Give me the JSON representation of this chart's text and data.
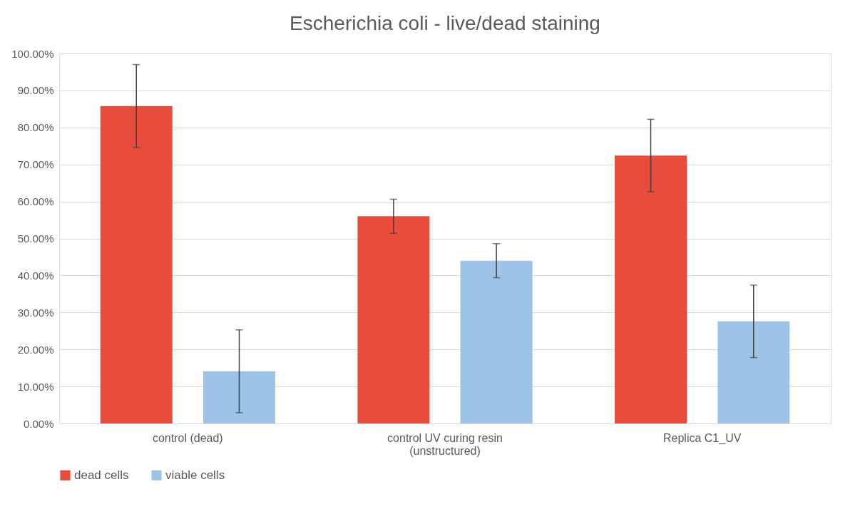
{
  "chart_data": {
    "type": "bar",
    "title": "Escherichia coli - live/dead staining",
    "categories": [
      "control (dead)",
      "control  UV curing resin (unstructured)",
      "Replica C1_UV"
    ],
    "series": [
      {
        "name": "dead cells",
        "color": "#e84c3d",
        "values": [
          85.8,
          56.0,
          72.4
        ],
        "errors": [
          11.2,
          4.6,
          9.8
        ]
      },
      {
        "name": "viable cells",
        "color": "#9dc3e6",
        "values": [
          14.1,
          44.0,
          27.6
        ],
        "errors": [
          11.2,
          4.6,
          9.8
        ]
      }
    ],
    "ylim": [
      0,
      100
    ],
    "yticks": [
      {
        "value": 0,
        "label": "0.00%"
      },
      {
        "value": 10,
        "label": "10.00%"
      },
      {
        "value": 20,
        "label": "20.00%"
      },
      {
        "value": 30,
        "label": "30.00%"
      },
      {
        "value": 40,
        "label": "40.00%"
      },
      {
        "value": 50,
        "label": "50.00%"
      },
      {
        "value": 60,
        "label": "60.00%"
      },
      {
        "value": 70,
        "label": "70.00%"
      },
      {
        "value": 80,
        "label": "80.00%"
      },
      {
        "value": 90,
        "label": "90.00%"
      },
      {
        "value": 100,
        "label": "100.00%"
      }
    ],
    "grid": "y",
    "legend": "bottom"
  }
}
